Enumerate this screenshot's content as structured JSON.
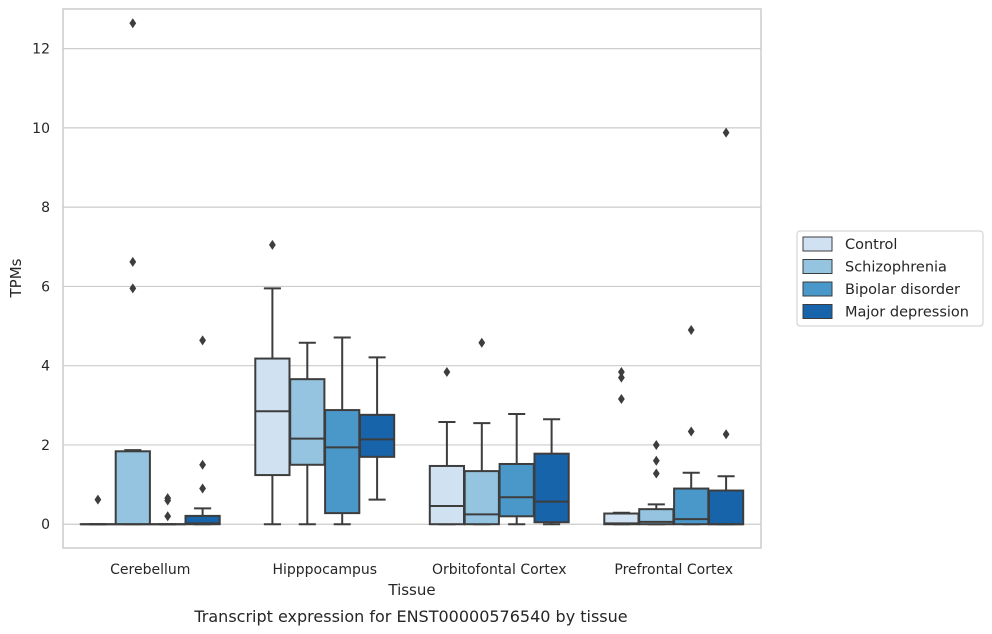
{
  "chart_data": {
    "type": "box",
    "title": "",
    "caption": "Transcript expression for ENST00000576540 by tissue",
    "xlabel": "Tissue",
    "ylabel": "TPMs",
    "ylim": [
      -0.6,
      13.0
    ],
    "yticks": [
      0,
      2,
      4,
      6,
      8,
      10,
      12
    ],
    "grid": true,
    "legend_position": "right",
    "categories": [
      "Cerebellum",
      "Hipppocampus",
      "Orbitofontal Cortex",
      "Prefrontal Cortex"
    ],
    "series": [
      {
        "name": "Control",
        "color": "#d0e1f2",
        "boxes": [
          {
            "q1": 0,
            "median": 0,
            "q3": 0,
            "whislo": 0,
            "whishi": 0,
            "fliers": [
              0.62
            ]
          },
          {
            "q1": 1.24,
            "median": 2.85,
            "q3": 4.18,
            "whislo": 0,
            "whishi": 5.95,
            "fliers": [
              7.05
            ]
          },
          {
            "q1": 0,
            "median": 0.46,
            "q3": 1.47,
            "whislo": 0,
            "whishi": 2.58,
            "fliers": [
              3.84
            ]
          },
          {
            "q1": 0,
            "median": 0.02,
            "q3": 0.27,
            "whislo": 0,
            "whishi": 0.29,
            "fliers": [
              3.16,
              3.7,
              3.84
            ]
          }
        ]
      },
      {
        "name": "Schizophrenia",
        "color": "#94c4df",
        "boxes": [
          {
            "q1": 0,
            "median": 0,
            "q3": 1.84,
            "whislo": 0,
            "whishi": 1.87,
            "fliers": [
              5.95,
              6.62,
              12.64
            ]
          },
          {
            "q1": 1.5,
            "median": 2.16,
            "q3": 3.66,
            "whislo": 0,
            "whishi": 4.58,
            "fliers": []
          },
          {
            "q1": 0,
            "median": 0.25,
            "q3": 1.34,
            "whislo": 0,
            "whishi": 2.55,
            "fliers": [
              4.58
            ]
          },
          {
            "q1": 0,
            "median": 0.06,
            "q3": 0.38,
            "whislo": 0,
            "whishi": 0.5,
            "fliers": [
              1.28,
              1.6,
              2.0
            ]
          }
        ]
      },
      {
        "name": "Bipolar disorder",
        "color": "#4a98c9",
        "boxes": [
          {
            "q1": 0,
            "median": 0,
            "q3": 0,
            "whislo": 0,
            "whishi": 0,
            "fliers": [
              0.2,
              0.6,
              0.66
            ]
          },
          {
            "q1": 0.28,
            "median": 1.94,
            "q3": 2.88,
            "whislo": 0,
            "whishi": 4.71,
            "fliers": []
          },
          {
            "q1": 0.2,
            "median": 0.68,
            "q3": 1.52,
            "whislo": 0,
            "whishi": 2.78,
            "fliers": []
          },
          {
            "q1": 0,
            "median": 0.13,
            "q3": 0.9,
            "whislo": 0,
            "whishi": 1.3,
            "fliers": [
              2.34,
              4.9
            ]
          }
        ]
      },
      {
        "name": "Major depression",
        "color": "#1764ab",
        "boxes": [
          {
            "q1": 0,
            "median": 0.02,
            "q3": 0.21,
            "whislo": 0,
            "whishi": 0.4,
            "fliers": [
              0.9,
              1.5,
              4.64
            ]
          },
          {
            "q1": 1.7,
            "median": 2.14,
            "q3": 2.76,
            "whislo": 0.62,
            "whishi": 4.21,
            "fliers": []
          },
          {
            "q1": 0.05,
            "median": 0.57,
            "q3": 1.78,
            "whislo": 0,
            "whishi": 2.65,
            "fliers": []
          },
          {
            "q1": 0,
            "median": 0,
            "q3": 0.85,
            "whislo": 0,
            "whishi": 1.21,
            "fliers": [
              2.27,
              9.88
            ]
          }
        ]
      }
    ]
  },
  "style": {
    "grid_color": "#cccccc",
    "spine_color": "#cccccc",
    "line_color": "#3d3d3d"
  }
}
